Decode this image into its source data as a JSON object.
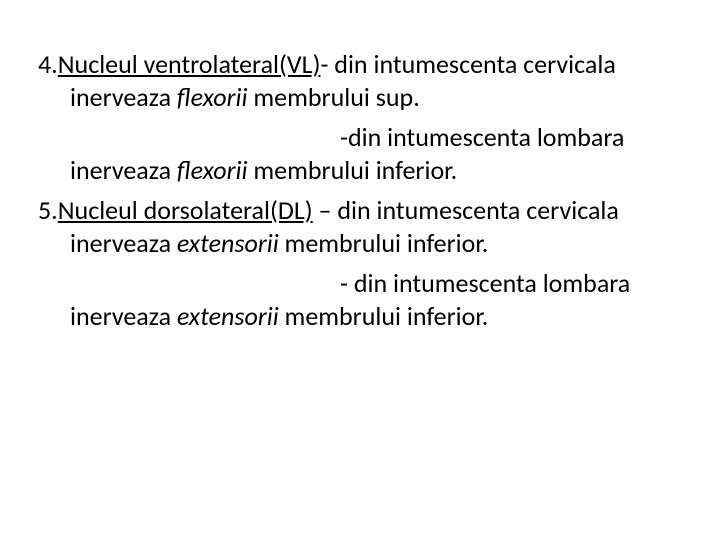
{
  "items": [
    {
      "num": "4.",
      "underlined": "Nucleul ventrolateral(VL)",
      "afterUnderline": "- din intumescenta cervicala inerveaza ",
      "italic1": "flexorii",
      "afterItalic1": " membrului sup.",
      "sub": {
        "indentText": "-din intumescenta lombara inerveaza ",
        "italic": "flexorii",
        "after": " membrului inferior."
      }
    },
    {
      "num": "5.",
      "underlined": "Nucleul dorsolateral(DL)",
      "afterUnderline": " – din intumescenta cervicala inerveaza ",
      "italic1": "extensorii",
      "afterItalic1": " membrului inferior.",
      "sub": {
        "indentText": "- din intumescenta lombara inerveaza ",
        "italic": "extensorii",
        "after": " membrului inferior."
      }
    }
  ]
}
